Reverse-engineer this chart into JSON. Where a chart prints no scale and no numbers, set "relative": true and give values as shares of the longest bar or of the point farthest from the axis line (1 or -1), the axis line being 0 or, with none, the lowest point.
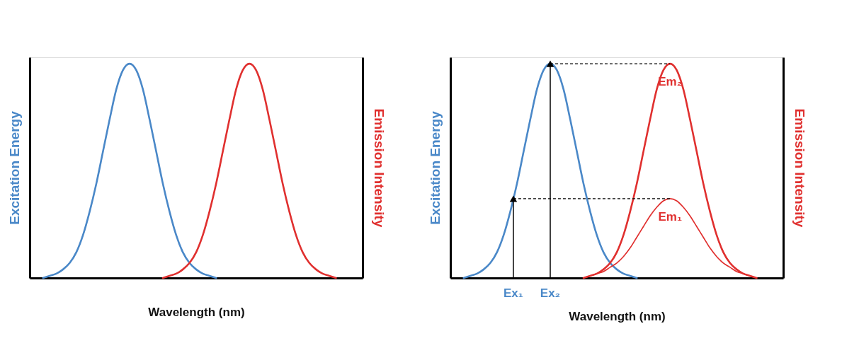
{
  "chart_data": [
    {
      "type": "line",
      "relative": true,
      "xlabel": "Wavelength (nm)",
      "ylabel": "Excitation Energy",
      "y2label": "Emission Intensity",
      "tick_labels": false,
      "grid": false,
      "categories": [
        null,
        null,
        null,
        null,
        null,
        null,
        null,
        null,
        null,
        null,
        null,
        null,
        null,
        null,
        null,
        null,
        null,
        null,
        null,
        null,
        null,
        null,
        null,
        null,
        null,
        null,
        null,
        null,
        null,
        null,
        null,
        null,
        null,
        null,
        null,
        null,
        null,
        null,
        null,
        null,
        null,
        null,
        null,
        null,
        null,
        null,
        null,
        null,
        null,
        null,
        null
      ],
      "series": [
        {
          "color": "#4a88c8",
          "values": [
            null,
            null,
            0,
            0.01,
            0.02,
            0.04,
            0.07,
            0.12,
            0.2,
            0.31,
            0.44,
            0.59,
            0.74,
            0.88,
            0.97,
            1,
            0.97,
            0.88,
            0.74,
            0.59,
            0.44,
            0.31,
            0.2,
            0.12,
            0.07,
            0.04,
            0.02,
            0.01,
            0,
            null,
            null,
            null,
            null,
            null,
            null,
            null,
            null,
            null,
            null,
            null,
            null,
            null,
            null,
            null,
            null,
            null,
            null,
            null,
            null,
            null,
            null
          ]
        },
        {
          "color": "#e0302f",
          "values": [
            null,
            null,
            null,
            null,
            null,
            null,
            null,
            null,
            null,
            null,
            null,
            null,
            null,
            null,
            null,
            null,
            null,
            null,
            null,
            null,
            0,
            0.01,
            0.02,
            0.04,
            0.07,
            0.12,
            0.2,
            0.31,
            0.44,
            0.59,
            0.74,
            0.88,
            0.97,
            1,
            0.97,
            0.88,
            0.74,
            0.59,
            0.44,
            0.31,
            0.2,
            0.12,
            0.07,
            0.04,
            0.02,
            0.01,
            0,
            null,
            null,
            null,
            null
          ]
        }
      ]
    },
    {
      "type": "line",
      "relative": true,
      "xlabel": "Wavelength (nm)",
      "ylabel": "Excitation Energy",
      "y2label": "Emission Intensity",
      "tick_labels": false,
      "grid": false,
      "categories": [
        null,
        null,
        null,
        null,
        null,
        null,
        null,
        null,
        null,
        null,
        null,
        null,
        null,
        null,
        null,
        null,
        null,
        null,
        null,
        null,
        null,
        null,
        null,
        null,
        null,
        null,
        null,
        null,
        null,
        null,
        null,
        null,
        null,
        null,
        null,
        null,
        null,
        null,
        null,
        null,
        null,
        null,
        null,
        null,
        null,
        null,
        null,
        null,
        null,
        null,
        null
      ],
      "annotations": [
        "Ex₁",
        "Ex₂"
      ],
      "series": [
        {
          "color": "#4a88c8",
          "values": [
            null,
            null,
            0,
            0.01,
            0.02,
            0.04,
            0.07,
            0.12,
            0.2,
            0.31,
            0.44,
            0.59,
            0.74,
            0.88,
            0.97,
            1,
            0.97,
            0.88,
            0.74,
            0.59,
            0.44,
            0.31,
            0.2,
            0.12,
            0.07,
            0.04,
            0.02,
            0.01,
            0,
            null,
            null,
            null,
            null,
            null,
            null,
            null,
            null,
            null,
            null,
            null,
            null,
            null,
            null,
            null,
            null,
            null,
            null,
            null,
            null,
            null,
            null
          ]
        },
        {
          "name": "Em₂",
          "color": "#e0302f",
          "values": [
            null,
            null,
            null,
            null,
            null,
            null,
            null,
            null,
            null,
            null,
            null,
            null,
            null,
            null,
            null,
            null,
            null,
            null,
            null,
            null,
            0,
            0.01,
            0.02,
            0.04,
            0.07,
            0.12,
            0.2,
            0.31,
            0.44,
            0.59,
            0.74,
            0.88,
            0.97,
            1,
            0.97,
            0.88,
            0.74,
            0.59,
            0.44,
            0.31,
            0.2,
            0.12,
            0.07,
            0.04,
            0.02,
            0.01,
            0,
            null,
            null,
            null,
            null
          ]
        },
        {
          "name": "Em₁",
          "color": "#e0302f",
          "values": [
            null,
            null,
            null,
            null,
            null,
            null,
            null,
            null,
            null,
            null,
            null,
            null,
            null,
            null,
            null,
            null,
            null,
            null,
            null,
            null,
            0,
            0.01,
            0.02,
            0.03,
            0.05,
            0.07,
            0.1,
            0.14,
            0.19,
            0.24,
            0.29,
            0.33,
            0.36,
            0.37,
            0.36,
            0.33,
            0.29,
            0.24,
            0.19,
            0.14,
            0.1,
            0.07,
            0.05,
            0.03,
            0.02,
            0.01,
            0,
            null,
            null,
            null,
            null
          ]
        }
      ]
    }
  ]
}
